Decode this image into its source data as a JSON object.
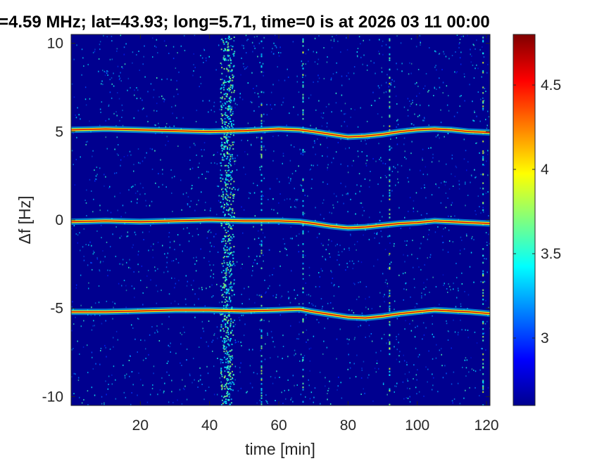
{
  "chart_data": {
    "type": "heatmap",
    "title": "=4.59 MHz;  lat=43.93; long=5.71, time=0 is at 2026 03 11 00:00",
    "xlabel": "time [min]",
    "ylabel": "Δf [Hz]",
    "xlim": [
      0,
      121
    ],
    "ylim": [
      -10.5,
      10.5
    ],
    "x_ticks": [
      20,
      40,
      60,
      80,
      100,
      120
    ],
    "y_ticks": [
      -10,
      -5,
      0,
      5,
      10
    ],
    "y_tick_labels": [
      "-10",
      "-5",
      "0",
      "5",
      "10"
    ],
    "colormap": "jet",
    "colorbar": {
      "clim": [
        2.6,
        4.8
      ],
      "ticks": [
        3,
        3.5,
        4,
        4.5
      ],
      "tick_labels": [
        "3",
        "3.5",
        "4",
        "4.5"
      ]
    },
    "background_color": "#00008f",
    "series": [
      {
        "offset": 5,
        "x": [
          0,
          10,
          20,
          30,
          40,
          50,
          60,
          66,
          70,
          75,
          80,
          85,
          90,
          95,
          100,
          105,
          110,
          115,
          121
        ],
        "y": [
          5.1,
          5.15,
          5.1,
          5.05,
          5.0,
          5.05,
          5.15,
          5.1,
          5.0,
          4.85,
          4.7,
          4.75,
          4.85,
          5.0,
          5.1,
          5.15,
          5.1,
          5.0,
          4.95
        ]
      },
      {
        "offset": 0,
        "x": [
          0,
          10,
          20,
          30,
          40,
          50,
          60,
          66,
          70,
          75,
          80,
          85,
          90,
          95,
          100,
          105,
          110,
          115,
          121
        ],
        "y": [
          -0.1,
          -0.05,
          -0.1,
          -0.05,
          0.0,
          -0.05,
          -0.05,
          -0.1,
          -0.2,
          -0.35,
          -0.45,
          -0.4,
          -0.3,
          -0.2,
          -0.15,
          -0.05,
          -0.1,
          -0.15,
          -0.2
        ]
      },
      {
        "offset": -5,
        "x": [
          0,
          10,
          20,
          30,
          40,
          50,
          60,
          66,
          70,
          75,
          80,
          85,
          90,
          95,
          100,
          105,
          110,
          115,
          121
        ],
        "y": [
          -5.2,
          -5.2,
          -5.15,
          -5.1,
          -5.1,
          -5.15,
          -5.1,
          -5.05,
          -5.2,
          -5.35,
          -5.5,
          -5.55,
          -5.45,
          -5.3,
          -5.2,
          -5.1,
          -5.15,
          -5.2,
          -5.3
        ]
      }
    ],
    "bright_bands_x": [
      44,
      45,
      46
    ],
    "spike_columns_x": [
      55,
      67,
      92,
      119
    ]
  }
}
